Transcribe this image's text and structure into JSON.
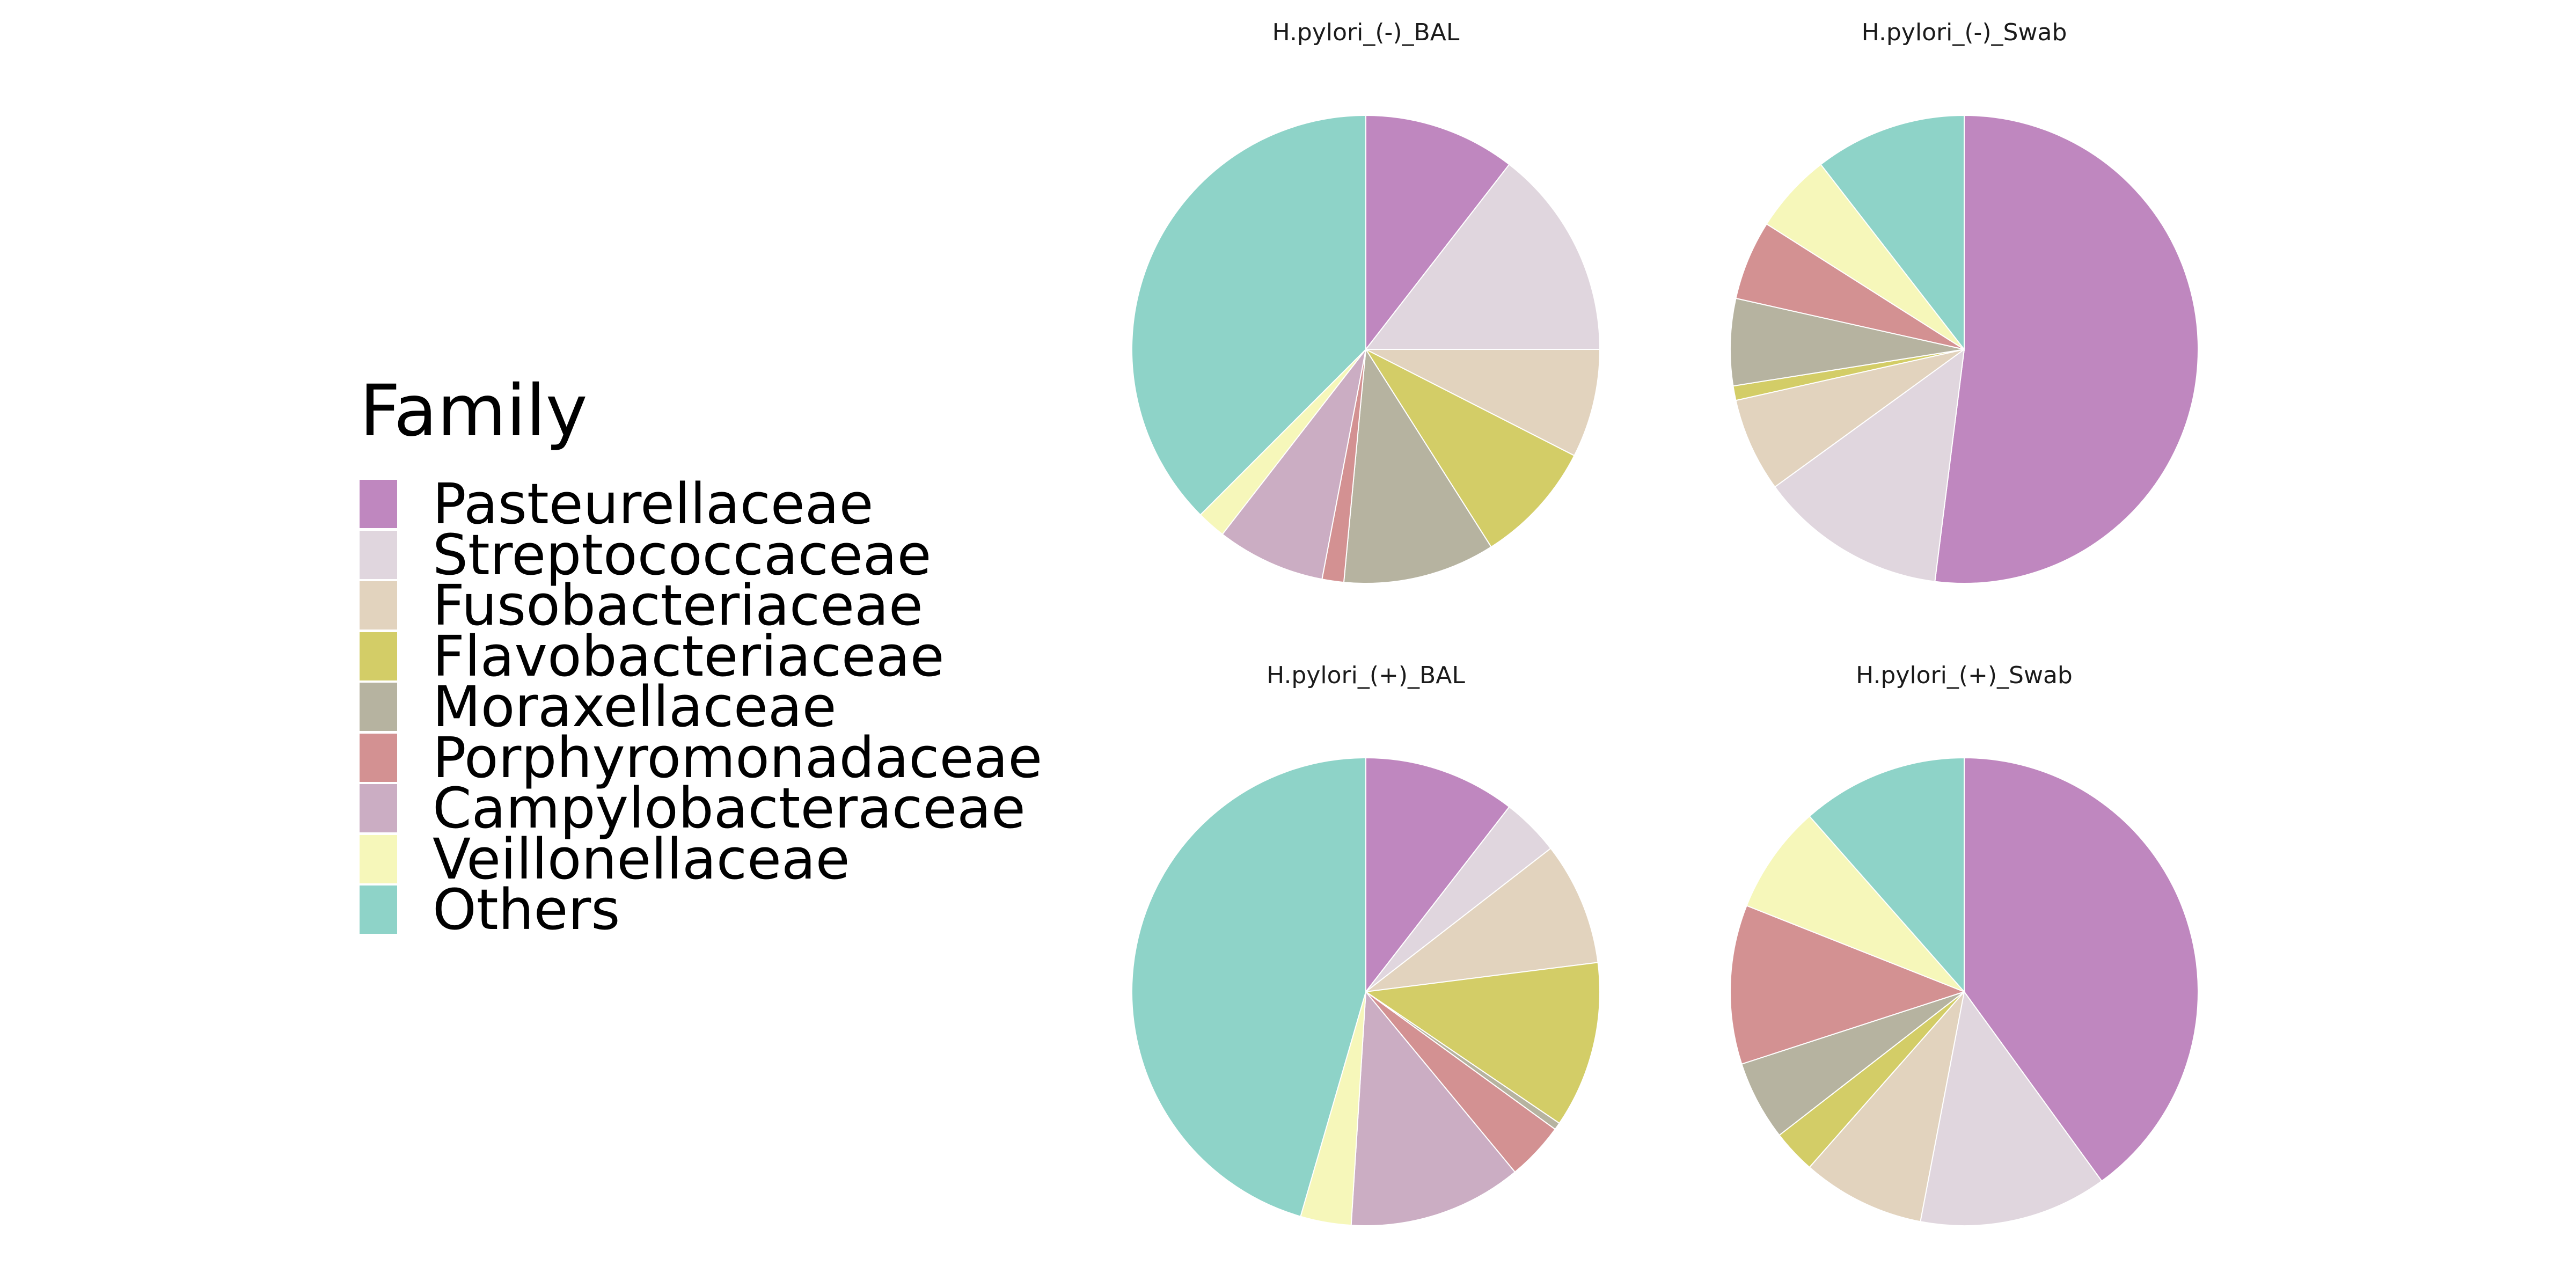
{
  "legend": {
    "title": "Family",
    "items": [
      {
        "label": "Pasteurellaceae",
        "color": "#BF87BF"
      },
      {
        "label": "Streptococcaceae",
        "color": "#E0D6DE"
      },
      {
        "label": "Fusobacteriaceae",
        "color": "#E2D3BE"
      },
      {
        "label": "Flavobacteriaceae",
        "color": "#D3CD67"
      },
      {
        "label": "Moraxellaceae",
        "color": "#B6B3A0"
      },
      {
        "label": "Porphyromonadaceae",
        "color": "#D39192"
      },
      {
        "label": "Campylobacteraceae",
        "color": "#CBADC3"
      },
      {
        "label": "Veillonellaceae",
        "color": "#F6F7BA"
      },
      {
        "label": "Others",
        "color": "#8ED3C8"
      }
    ]
  },
  "chart_data": [
    {
      "type": "pie",
      "title": "H.pylori_(-)_BAL",
      "labels": [
        "Pasteurellaceae",
        "Streptococcaceae",
        "Fusobacteriaceae",
        "Flavobacteriaceae",
        "Moraxellaceae",
        "Porphyromonadaceae",
        "Campylobacteraceae",
        "Veillonellaceae",
        "Others"
      ],
      "values": [
        10.5,
        14.5,
        7.5,
        8.5,
        10.5,
        1.5,
        7.5,
        2.0,
        37.5
      ]
    },
    {
      "type": "pie",
      "title": "H.pylori_(-)_Swab",
      "labels": [
        "Pasteurellaceae",
        "Streptococcaceae",
        "Fusobacteriaceae",
        "Flavobacteriaceae",
        "Moraxellaceae",
        "Porphyromonadaceae",
        "Campylobacteraceae",
        "Veillonellaceae",
        "Others"
      ],
      "values": [
        52.0,
        13.0,
        6.5,
        1.0,
        6.0,
        5.5,
        0.0,
        5.5,
        10.5
      ]
    },
    {
      "type": "pie",
      "title": "H.pylori_(+)_BAL",
      "labels": [
        "Pasteurellaceae",
        "Streptococcaceae",
        "Fusobacteriaceae",
        "Flavobacteriaceae",
        "Moraxellaceae",
        "Porphyromonadaceae",
        "Campylobacteraceae",
        "Veillonellaceae",
        "Others"
      ],
      "values": [
        10.5,
        4.0,
        8.5,
        11.5,
        0.5,
        4.0,
        12.0,
        3.5,
        45.5
      ]
    },
    {
      "type": "pie",
      "title": "H.pylori_(+)_Swab",
      "labels": [
        "Pasteurellaceae",
        "Streptococcaceae",
        "Fusobacteriaceae",
        "Flavobacteriaceae",
        "Moraxellaceae",
        "Porphyromonadaceae",
        "Campylobacteraceae",
        "Veillonellaceae",
        "Others"
      ],
      "values": [
        40.0,
        13.0,
        8.5,
        3.0,
        5.5,
        11.0,
        0.0,
        7.5,
        11.5
      ]
    }
  ]
}
